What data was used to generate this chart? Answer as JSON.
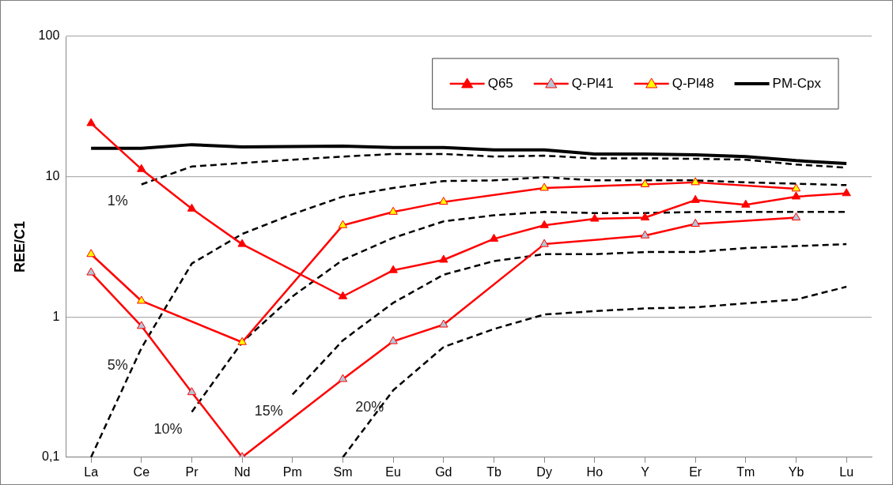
{
  "chart_data": {
    "type": "line",
    "ylabel": "REE/C1",
    "categories": [
      "La",
      "Ce",
      "Pr",
      "Nd",
      "Pm",
      "Sm",
      "Eu",
      "Gd",
      "Tb",
      "Dy",
      "Ho",
      "Y",
      "Er",
      "Tm",
      "Yb",
      "Lu"
    ],
    "series": [
      {
        "name": "Q65",
        "color": "#ff0000",
        "marker": "triangle",
        "colors": [
          "#ff0000",
          "#ff0000",
          "#ff0000",
          "#ff0000",
          "#ff0000",
          "#ff0000",
          "#ff0000",
          "#ff0000",
          "#ff0000",
          "#ff0000",
          "#ff0000",
          "#ff0000",
          "#ff0000",
          "#ff0000",
          "#ff0000",
          "#ff0000"
        ],
        "values": [
          24,
          11.3,
          5.9,
          3.3,
          null,
          1.4,
          2.15,
          2.55,
          3.6,
          4.5,
          5.0,
          5.1,
          6.8,
          6.3,
          7.2,
          7.6
        ]
      },
      {
        "name": "Q-Pl41",
        "color": "#ff0000",
        "marker": "triangle",
        "colors": [
          "#b4c7d7",
          "#b4c7d7",
          "#b4c7d7",
          "#b4c7d7",
          "#b4c7d7",
          "#b4c7d7",
          "#b4c7d7",
          "#b4c7d7",
          "#b4c7d7",
          "#b4c7d7",
          "#b4c7d7",
          "#b4c7d7",
          "#b4c7d7",
          "#b4c7d7",
          "#b4c7d7",
          "#b4c7d7"
        ],
        "values": [
          2.07,
          0.86,
          0.29,
          0.1,
          null,
          0.36,
          0.67,
          0.88,
          null,
          3.3,
          null,
          3.8,
          4.6,
          null,
          5.1,
          null
        ]
      },
      {
        "name": "Q-Pl48",
        "color": "#ff0000",
        "marker": "triangle",
        "colors": [
          "#ffff00",
          "#ffff00",
          "#ffff00",
          "#ffff00",
          "#ffff00",
          "#ffff00",
          "#ffff00",
          "#ffff00",
          "#ffff00",
          "#ffff00",
          "#ffff00",
          "#ffff00",
          "#ffff00",
          "#ffff00",
          "#ffff00",
          "#ffff00"
        ],
        "values": [
          2.8,
          1.3,
          null,
          0.66,
          null,
          4.5,
          5.6,
          6.6,
          null,
          8.3,
          null,
          8.8,
          9.1,
          null,
          8.2,
          null
        ]
      },
      {
        "name": "PM-Cpx",
        "color": "#000000",
        "marker": "none",
        "values": [
          15.9,
          15.9,
          16.9,
          16.3,
          16.4,
          16.5,
          16.1,
          16.1,
          15.5,
          15.5,
          14.5,
          14.5,
          14.3,
          13.9,
          13.0,
          12.4
        ]
      },
      {
        "name": "1%",
        "color": "#000000",
        "marker": "none",
        "line_style": "dashed",
        "values": [
          null,
          8.8,
          11.8,
          12.5,
          13.2,
          13.9,
          14.5,
          14.5,
          13.9,
          14.1,
          13.5,
          13.5,
          13.4,
          13.2,
          12.2,
          11.6
        ]
      },
      {
        "name": "5%",
        "color": "#000000",
        "marker": "none",
        "line_style": "dashed",
        "values": [
          0.1,
          0.6,
          2.4,
          3.9,
          5.4,
          7.2,
          8.3,
          9.3,
          9.4,
          9.9,
          9.4,
          9.4,
          9.4,
          9.1,
          8.9,
          8.7
        ]
      },
      {
        "name": "10%",
        "color": "#000000",
        "marker": "none",
        "line_style": "dashed",
        "values": [
          null,
          null,
          0.21,
          0.66,
          1.4,
          2.55,
          3.66,
          4.8,
          5.3,
          5.6,
          5.5,
          5.5,
          5.6,
          5.6,
          5.6,
          5.6
        ]
      },
      {
        "name": "15%",
        "color": "#000000",
        "marker": "none",
        "line_style": "dashed",
        "values": [
          null,
          null,
          null,
          null,
          0.28,
          0.68,
          1.26,
          2.0,
          2.5,
          2.8,
          2.8,
          2.9,
          2.9,
          3.1,
          3.2,
          3.3
        ]
      },
      {
        "name": "20%",
        "color": "#000000",
        "marker": "none",
        "line_style": "dashed",
        "values": [
          null,
          null,
          null,
          null,
          null,
          0.1,
          0.3,
          0.61,
          0.82,
          1.04,
          1.1,
          1.15,
          1.17,
          1.25,
          1.33,
          1.64
        ]
      }
    ],
    "log": "y",
    "ylim": [
      0.1,
      100
    ],
    "yticks": [
      {
        "value": 0.1,
        "label": "0,1"
      },
      1,
      10,
      100
    ],
    "grid": "y",
    "legend": "top right"
  }
}
